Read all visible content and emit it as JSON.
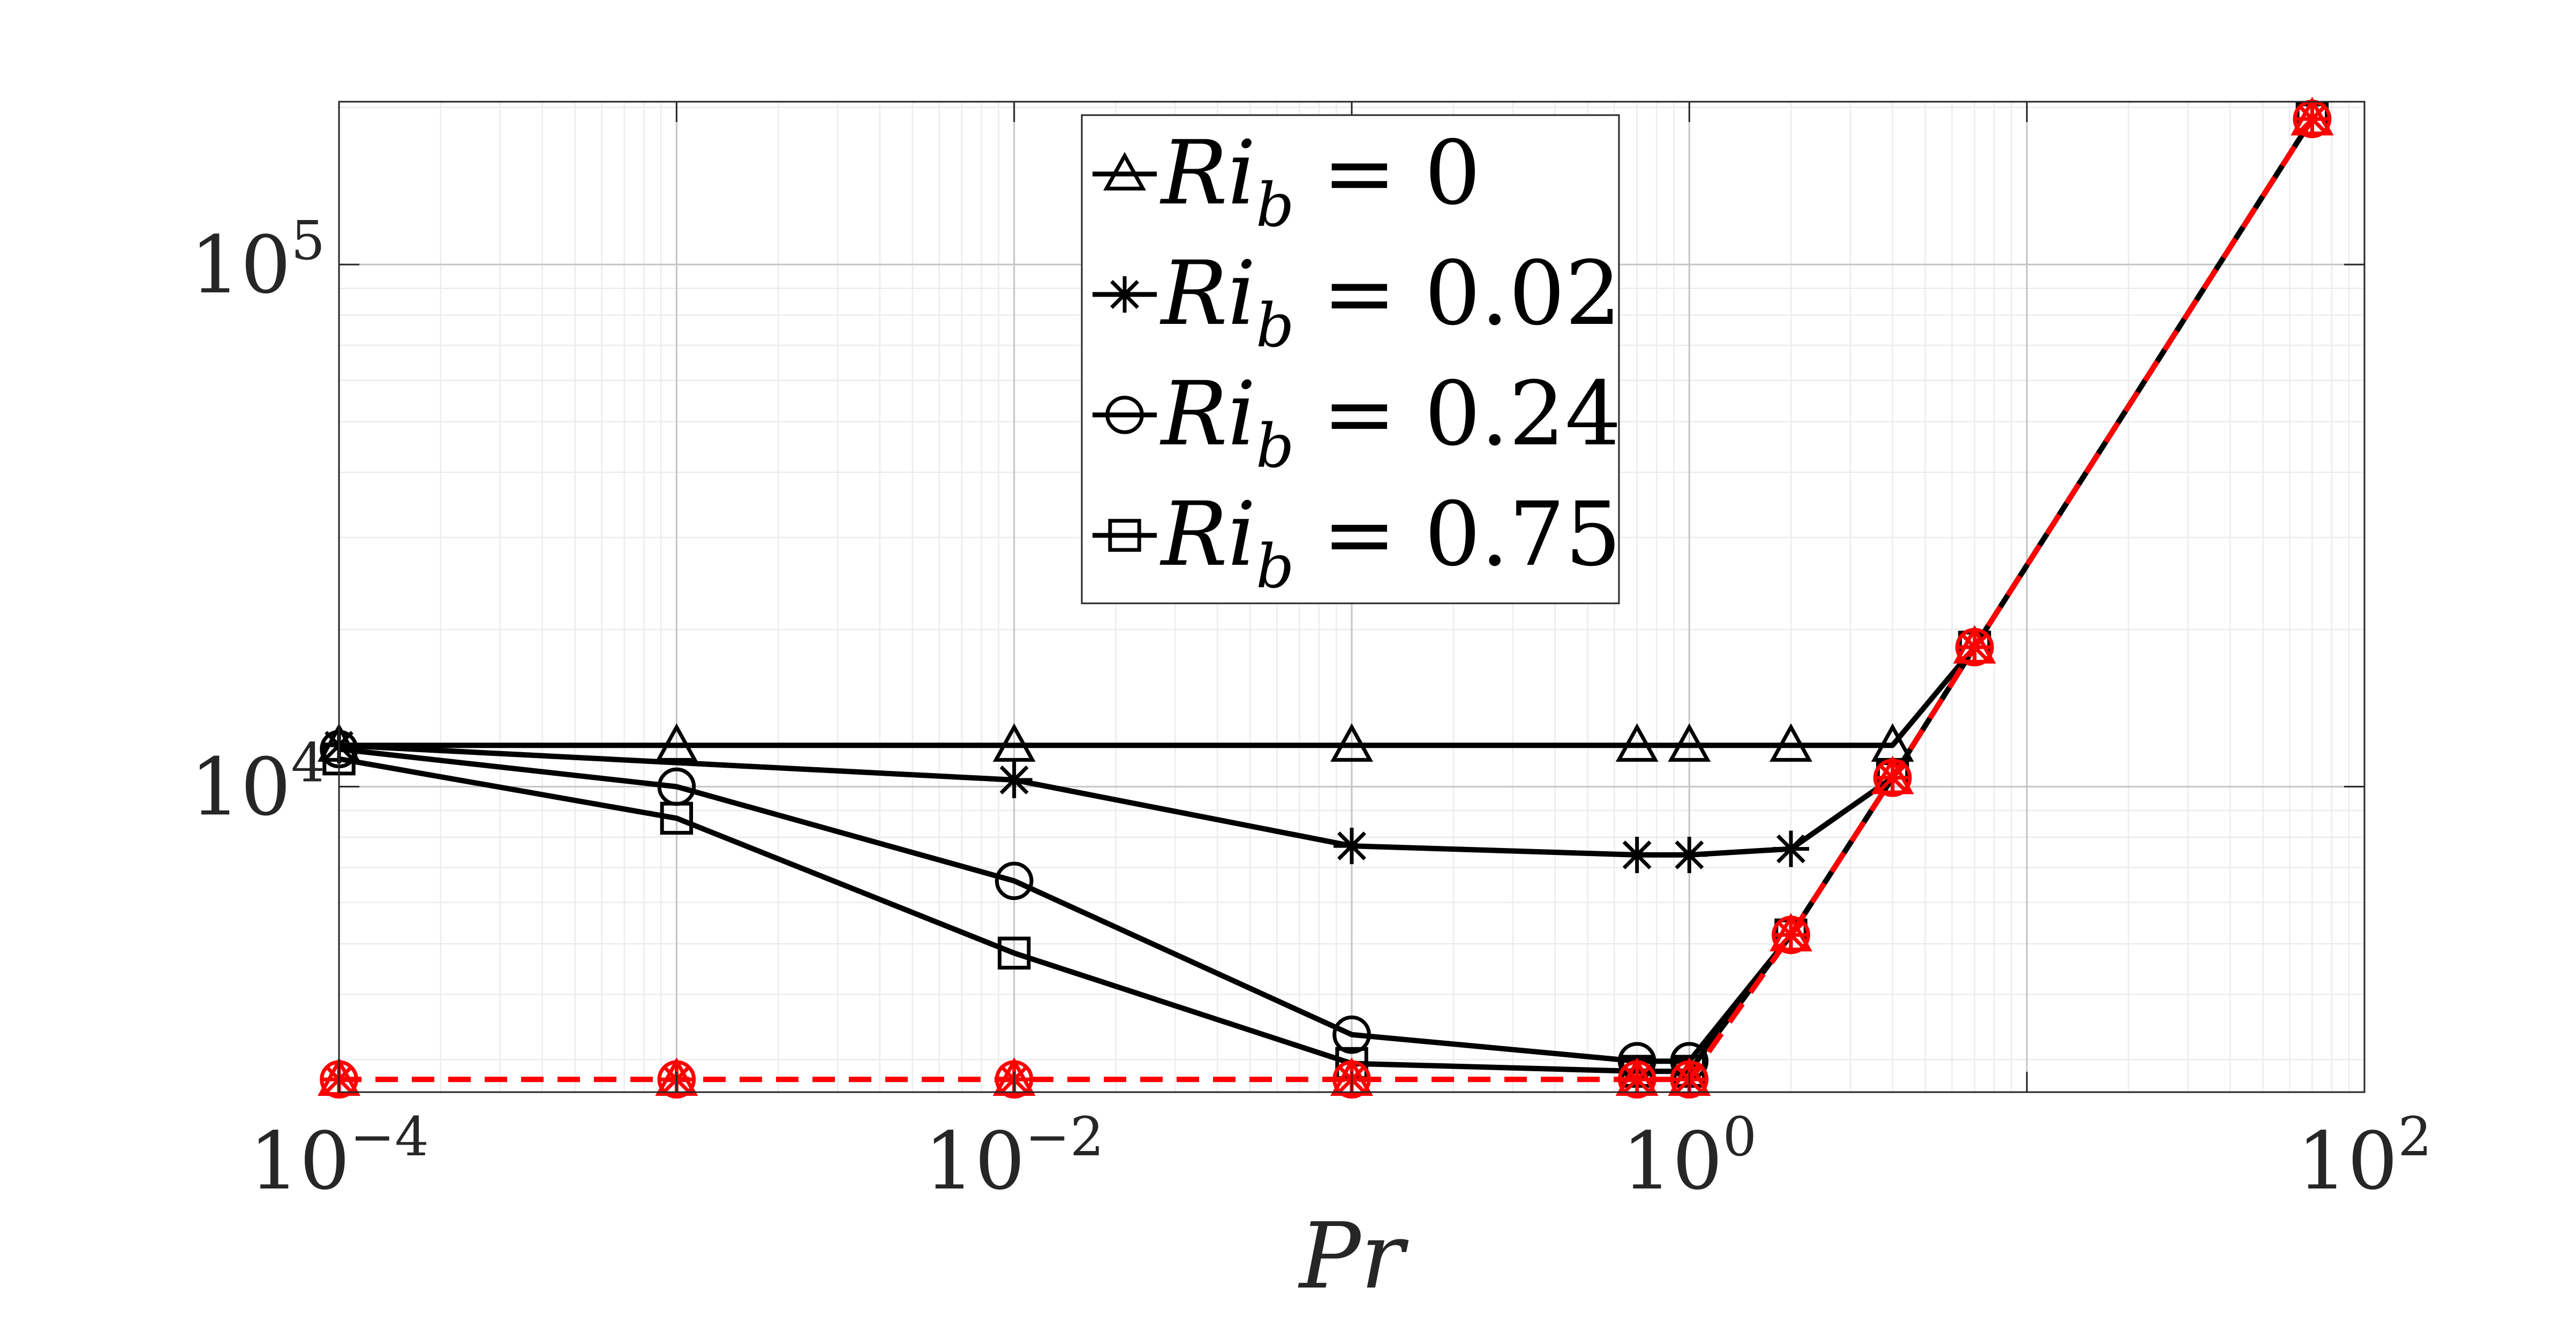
{
  "chart_data": {
    "type": "line",
    "title": "",
    "xlabel": "Pr",
    "ylabel": "",
    "xscale": "log",
    "yscale": "log",
    "xlim": [
      0.0001,
      100
    ],
    "ylim": [
      2600,
      205000
    ],
    "grid": true,
    "minor_grid": true,
    "legend_placement": "top-center",
    "x_tick_labels": [
      {
        "base": "10",
        "exp": "−4"
      },
      {
        "base": "10",
        "exp": "−2"
      },
      {
        "base": "10",
        "exp": "0"
      },
      {
        "base": "10",
        "exp": "2"
      }
    ],
    "y_tick_labels": [
      {
        "base": "10",
        "exp": "4"
      },
      {
        "base": "10",
        "exp": "5"
      }
    ],
    "colors": {
      "series": "#000000",
      "reference": "#ff0000"
    },
    "series": [
      {
        "name": "Ri_b = 0",
        "legend_text": {
          "var": "Ri",
          "sub": "b",
          "rest": " = 0"
        },
        "marker": "triangle",
        "x": [
          0.0001,
          0.001,
          0.01,
          0.1,
          0.7,
          1,
          2,
          4,
          7,
          70
        ],
        "y": [
          12000,
          12000,
          12000,
          12000,
          12000,
          12000,
          12000,
          12000,
          18500,
          190000
        ]
      },
      {
        "name": "Ri_b = 0.02",
        "legend_text": {
          "var": "Ri",
          "sub": "b",
          "rest": " = 0.02"
        },
        "marker": "star",
        "x": [
          0.0001,
          0.01,
          0.1,
          0.7,
          1,
          2,
          4,
          7,
          70
        ],
        "y": [
          12000,
          10300,
          7700,
          7400,
          7400,
          7600,
          10400,
          18500,
          190000
        ]
      },
      {
        "name": "Ri_b = 0.24",
        "legend_text": {
          "var": "Ri",
          "sub": "b",
          "rest": " = 0.24"
        },
        "marker": "circle",
        "x": [
          0.0001,
          0.001,
          0.01,
          0.1,
          0.7,
          1,
          2,
          4,
          7,
          70
        ],
        "y": [
          11800,
          10000,
          6600,
          3350,
          2980,
          2980,
          5200,
          10400,
          18500,
          190000
        ]
      },
      {
        "name": "Ri_b = 0.75",
        "legend_text": {
          "var": "Ri",
          "sub": "b",
          "rest": " = 0.75"
        },
        "marker": "square",
        "x": [
          0.0001,
          0.001,
          0.01,
          0.1,
          0.7,
          1,
          2,
          4,
          7,
          70
        ],
        "y": [
          11300,
          8700,
          4800,
          2950,
          2850,
          2850,
          5200,
          10400,
          18500,
          190000
        ]
      },
      {
        "marker": "overlay",
        "style": "dashed",
        "color": "#ff0000",
        "x": [
          0.0001,
          0.001,
          0.01,
          0.1,
          0.7,
          1,
          2,
          4,
          7,
          70
        ],
        "y": [
          2750,
          2750,
          2750,
          2750,
          2750,
          2750,
          5200,
          10400,
          18500,
          190000
        ]
      }
    ]
  }
}
